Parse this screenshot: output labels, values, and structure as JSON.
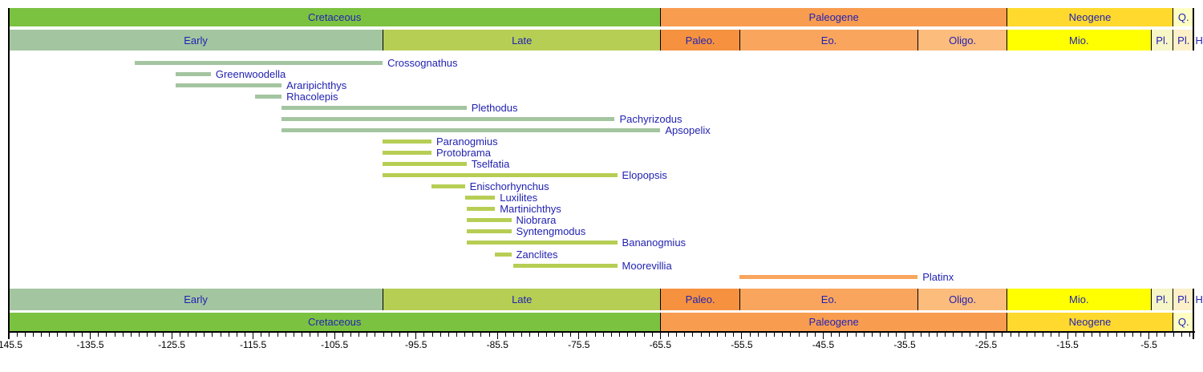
{
  "figure": {
    "background": "#ffffff",
    "frame_color": "#000000",
    "label_text_color": "#2222b2",
    "axis_text_color": "#000000"
  },
  "chart_data": {
    "type": "bar",
    "subtype": "stratigraphic-range-chart",
    "title": "",
    "xlabel": "",
    "x_unit": "Ma",
    "xlim": [
      -145.5,
      0
    ],
    "grid": "off",
    "minor_tick_step_myr": 1,
    "major_tick_step_myr": 10,
    "x_major_tick_labels": [
      "-145.5",
      "-135.5",
      "-125.5",
      "-115.5",
      "-105.5",
      "-95.5",
      "-85.5",
      "-75.5",
      "-65.5",
      "-55.5",
      "-45.5",
      "-35.5",
      "-25.5",
      "-15.5",
      "-5.5"
    ],
    "periods": [
      {
        "label": "Cretaceous",
        "start": -145.5,
        "end": -65.5,
        "color": "#7cc241"
      },
      {
        "label": "Paleogene",
        "start": -65.5,
        "end": -23.0,
        "color": "#f89c50"
      },
      {
        "label": "Neogene",
        "start": -23.0,
        "end": -2.6,
        "color": "#ffd92e"
      },
      {
        "label": "Q.",
        "start": -2.6,
        "end": 0,
        "color": "#ffffc4"
      }
    ],
    "epochs": [
      {
        "label": "Early",
        "start": -145.5,
        "end": -99.6,
        "color": "#a3c5a0"
      },
      {
        "label": "Late",
        "start": -99.6,
        "end": -65.5,
        "color": "#b6ce54"
      },
      {
        "label": "Paleo.",
        "start": -65.5,
        "end": -55.8,
        "color": "#f6923f"
      },
      {
        "label": "Eo.",
        "start": -55.8,
        "end": -33.9,
        "color": "#f9a55e"
      },
      {
        "label": "Oligo.",
        "start": -33.9,
        "end": -23.0,
        "color": "#fbbc7c"
      },
      {
        "label": "Mio.",
        "start": -23.0,
        "end": -5.3,
        "color": "#ffff00"
      },
      {
        "label": "Pl.",
        "start": -5.3,
        "end": -2.6,
        "color": "#f6f6c6"
      },
      {
        "label": "Pl.",
        "start": -2.6,
        "end": -0.01,
        "color": "#fdf0c8"
      },
      {
        "label": "H.",
        "start": -0.01,
        "end": 0,
        "color": "#ffffff"
      }
    ],
    "taxa": [
      {
        "name": "Crossognathus",
        "start": -130.0,
        "end": -99.6,
        "color": "#a3c5a0"
      },
      {
        "name": "Greenwoodella",
        "start": -125.0,
        "end": -120.7,
        "color": "#a3c5a0"
      },
      {
        "name": "Araripichthys",
        "start": -125.0,
        "end": -112.0,
        "color": "#a3c5a0"
      },
      {
        "name": "Rhacolepis",
        "start": -115.3,
        "end": -112.0,
        "color": "#a3c5a0"
      },
      {
        "name": "Plethodus",
        "start": -112.0,
        "end": -89.3,
        "color": "#a3c5a0"
      },
      {
        "name": "Pachyrizodus",
        "start": -112.0,
        "end": -71.1,
        "color": "#a3c5a0"
      },
      {
        "name": "Apsopelix",
        "start": -112.0,
        "end": -65.5,
        "color": "#a3c5a0"
      },
      {
        "name": "Paranogmius",
        "start": -99.6,
        "end": -93.6,
        "color": "#b6ce54"
      },
      {
        "name": "Protobrama",
        "start": -99.6,
        "end": -93.6,
        "color": "#b6ce54"
      },
      {
        "name": "Tselfatia",
        "start": -99.6,
        "end": -89.3,
        "color": "#b6ce54"
      },
      {
        "name": "Elopopsis",
        "start": -99.6,
        "end": -70.8,
        "color": "#b6ce54"
      },
      {
        "name": "Enischorhynchus",
        "start": -93.6,
        "end": -89.5,
        "color": "#b6ce54"
      },
      {
        "name": "Luxilites",
        "start": -89.5,
        "end": -85.8,
        "color": "#b6ce54"
      },
      {
        "name": "Martinichthys",
        "start": -89.3,
        "end": -85.8,
        "color": "#b6ce54"
      },
      {
        "name": "Niobrara",
        "start": -89.3,
        "end": -83.8,
        "color": "#b6ce54"
      },
      {
        "name": "Syntengmodus",
        "start": -89.3,
        "end": -83.8,
        "color": "#b6ce54"
      },
      {
        "name": "Bananogmius",
        "start": -89.3,
        "end": -70.8,
        "color": "#b6ce54"
      },
      {
        "name": "Zanclites",
        "start": -85.8,
        "end": -83.8,
        "color": "#b6ce54"
      },
      {
        "name": "Moorevillia",
        "start": -83.6,
        "end": -70.8,
        "color": "#b6ce54"
      },
      {
        "name": "Platinx",
        "start": -55.8,
        "end": -33.9,
        "color": "#f9a55e"
      }
    ]
  }
}
